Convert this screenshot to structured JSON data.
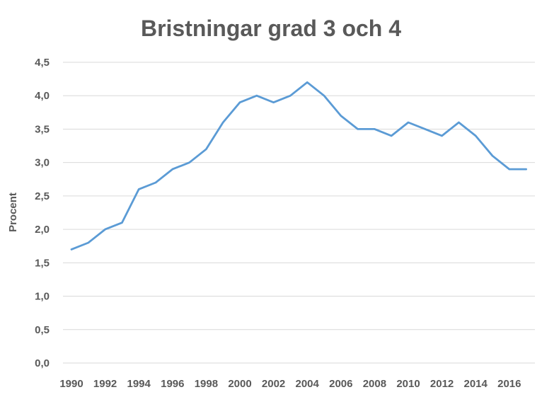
{
  "chart_data": {
    "type": "line",
    "title": "Bristningar grad 3 och 4",
    "xlabel": "",
    "ylabel": "Procent",
    "ylim": [
      0,
      4.5
    ],
    "y_ticks": [
      "0,0",
      "0,5",
      "1,0",
      "1,5",
      "2,0",
      "2,5",
      "3,0",
      "3,5",
      "4,0",
      "4,5"
    ],
    "y_tick_values": [
      0,
      0.5,
      1.0,
      1.5,
      2.0,
      2.5,
      3.0,
      3.5,
      4.0,
      4.5
    ],
    "x_tick_labels": [
      "1990",
      "1992",
      "1994",
      "1996",
      "1998",
      "2000",
      "2002",
      "2004",
      "2006",
      "2008",
      "2010",
      "2012",
      "2014",
      "2016"
    ],
    "x": [
      1990,
      1991,
      1992,
      1993,
      1994,
      1995,
      1996,
      1997,
      1998,
      1999,
      2000,
      2001,
      2002,
      2003,
      2004,
      2005,
      2006,
      2007,
      2008,
      2009,
      2010,
      2011,
      2012,
      2013,
      2014,
      2015,
      2016,
      2017
    ],
    "series": [
      {
        "values": [
          1.7,
          1.8,
          2.0,
          2.1,
          2.6,
          2.7,
          2.9,
          3.0,
          3.2,
          3.6,
          3.9,
          4.0,
          3.9,
          4.0,
          4.2,
          4.0,
          3.7,
          3.5,
          3.5,
          3.4,
          3.6,
          3.5,
          3.4,
          3.6,
          3.4,
          3.1,
          2.9,
          2.9
        ],
        "color": "#5B9BD5"
      }
    ],
    "grid": true,
    "gridline_color": "#D9D9D9",
    "text_color": "#595959",
    "legend": "none"
  }
}
